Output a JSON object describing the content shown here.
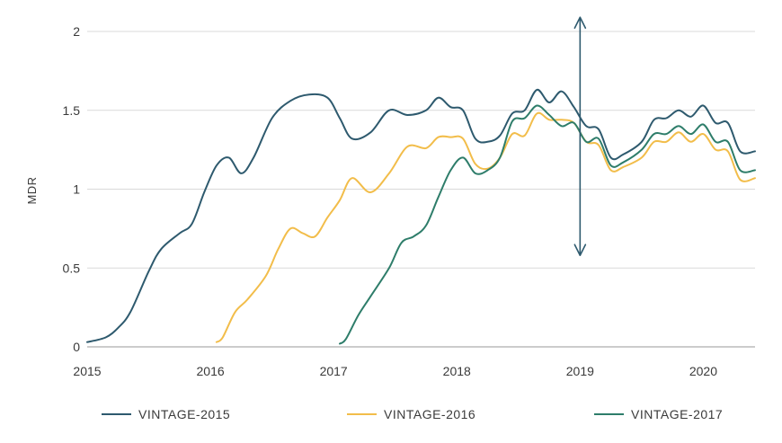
{
  "chart_data": {
    "type": "line",
    "title": "",
    "xlabel": "",
    "ylabel": "MDR",
    "xlim": [
      2015,
      2020.42
    ],
    "ylim": [
      0,
      2
    ],
    "x_ticks": [
      "2015",
      "2016",
      "2017",
      "2018",
      "2019",
      "2020"
    ],
    "y_ticks": [
      "0",
      "0.5",
      "1",
      "1.5",
      "2"
    ],
    "grid": "horizontal",
    "legend_position": "bottom",
    "series": [
      {
        "name": "VINTAGE-2015",
        "color": "#2e5a6e",
        "x": [
          2015.0,
          2015.15,
          2015.25,
          2015.35,
          2015.5,
          2015.6,
          2015.75,
          2015.85,
          2015.95,
          2016.05,
          2016.15,
          2016.25,
          2016.35,
          2016.5,
          2016.65,
          2016.8,
          2016.95,
          2017.05,
          2017.15,
          2017.3,
          2017.45,
          2017.6,
          2017.75,
          2017.85,
          2017.95,
          2018.05,
          2018.15,
          2018.25,
          2018.35,
          2018.45,
          2018.55,
          2018.65,
          2018.75,
          2018.85,
          2018.95,
          2019.05,
          2019.15,
          2019.25,
          2019.35,
          2019.5,
          2019.6,
          2019.7,
          2019.8,
          2019.9,
          2020.0,
          2020.1,
          2020.2,
          2020.3,
          2020.42
        ],
        "y": [
          0.03,
          0.06,
          0.12,
          0.22,
          0.48,
          0.62,
          0.72,
          0.78,
          0.98,
          1.15,
          1.2,
          1.1,
          1.2,
          1.45,
          1.56,
          1.6,
          1.58,
          1.45,
          1.32,
          1.36,
          1.5,
          1.47,
          1.5,
          1.58,
          1.52,
          1.5,
          1.32,
          1.3,
          1.34,
          1.48,
          1.5,
          1.63,
          1.55,
          1.62,
          1.52,
          1.4,
          1.38,
          1.2,
          1.22,
          1.3,
          1.44,
          1.45,
          1.5,
          1.46,
          1.53,
          1.42,
          1.42,
          1.24,
          1.24
        ]
      },
      {
        "name": "VINTAGE-2016",
        "color": "#f2bd4a",
        "x": [
          2016.05,
          2016.1,
          2016.2,
          2016.3,
          2016.45,
          2016.55,
          2016.65,
          2016.75,
          2016.85,
          2016.95,
          2017.05,
          2017.15,
          2017.3,
          2017.45,
          2017.6,
          2017.75,
          2017.85,
          2017.95,
          2018.05,
          2018.15,
          2018.25,
          2018.35,
          2018.45,
          2018.55,
          2018.65,
          2018.75,
          2018.85,
          2018.95,
          2019.05,
          2019.15,
          2019.25,
          2019.35,
          2019.5,
          2019.6,
          2019.7,
          2019.8,
          2019.9,
          2020.0,
          2020.1,
          2020.2,
          2020.3,
          2020.42
        ],
        "y": [
          0.03,
          0.06,
          0.22,
          0.3,
          0.45,
          0.62,
          0.75,
          0.72,
          0.7,
          0.82,
          0.93,
          1.07,
          0.98,
          1.1,
          1.27,
          1.26,
          1.33,
          1.33,
          1.32,
          1.16,
          1.13,
          1.2,
          1.35,
          1.34,
          1.48,
          1.44,
          1.44,
          1.42,
          1.3,
          1.28,
          1.12,
          1.14,
          1.2,
          1.3,
          1.3,
          1.36,
          1.3,
          1.35,
          1.25,
          1.24,
          1.06,
          1.07
        ]
      },
      {
        "name": "VINTAGE-2017",
        "color": "#2e7d6a",
        "x": [
          2017.05,
          2017.1,
          2017.2,
          2017.3,
          2017.45,
          2017.55,
          2017.65,
          2017.75,
          2017.85,
          2017.95,
          2018.05,
          2018.15,
          2018.25,
          2018.35,
          2018.45,
          2018.55,
          2018.65,
          2018.75,
          2018.85,
          2018.95,
          2019.05,
          2019.15,
          2019.25,
          2019.35,
          2019.5,
          2019.6,
          2019.7,
          2019.8,
          2019.9,
          2020.0,
          2020.1,
          2020.2,
          2020.3,
          2020.42
        ],
        "y": [
          0.02,
          0.05,
          0.2,
          0.32,
          0.5,
          0.66,
          0.7,
          0.77,
          0.95,
          1.12,
          1.2,
          1.1,
          1.12,
          1.2,
          1.43,
          1.45,
          1.53,
          1.47,
          1.4,
          1.42,
          1.3,
          1.32,
          1.15,
          1.17,
          1.25,
          1.35,
          1.35,
          1.4,
          1.35,
          1.41,
          1.3,
          1.3,
          1.12,
          1.12
        ]
      }
    ],
    "annotations": [
      {
        "type": "double-arrow",
        "x": 2019.0,
        "y_from": 0.58,
        "y_to": 2.09,
        "color": "#2e5a6e"
      }
    ]
  }
}
